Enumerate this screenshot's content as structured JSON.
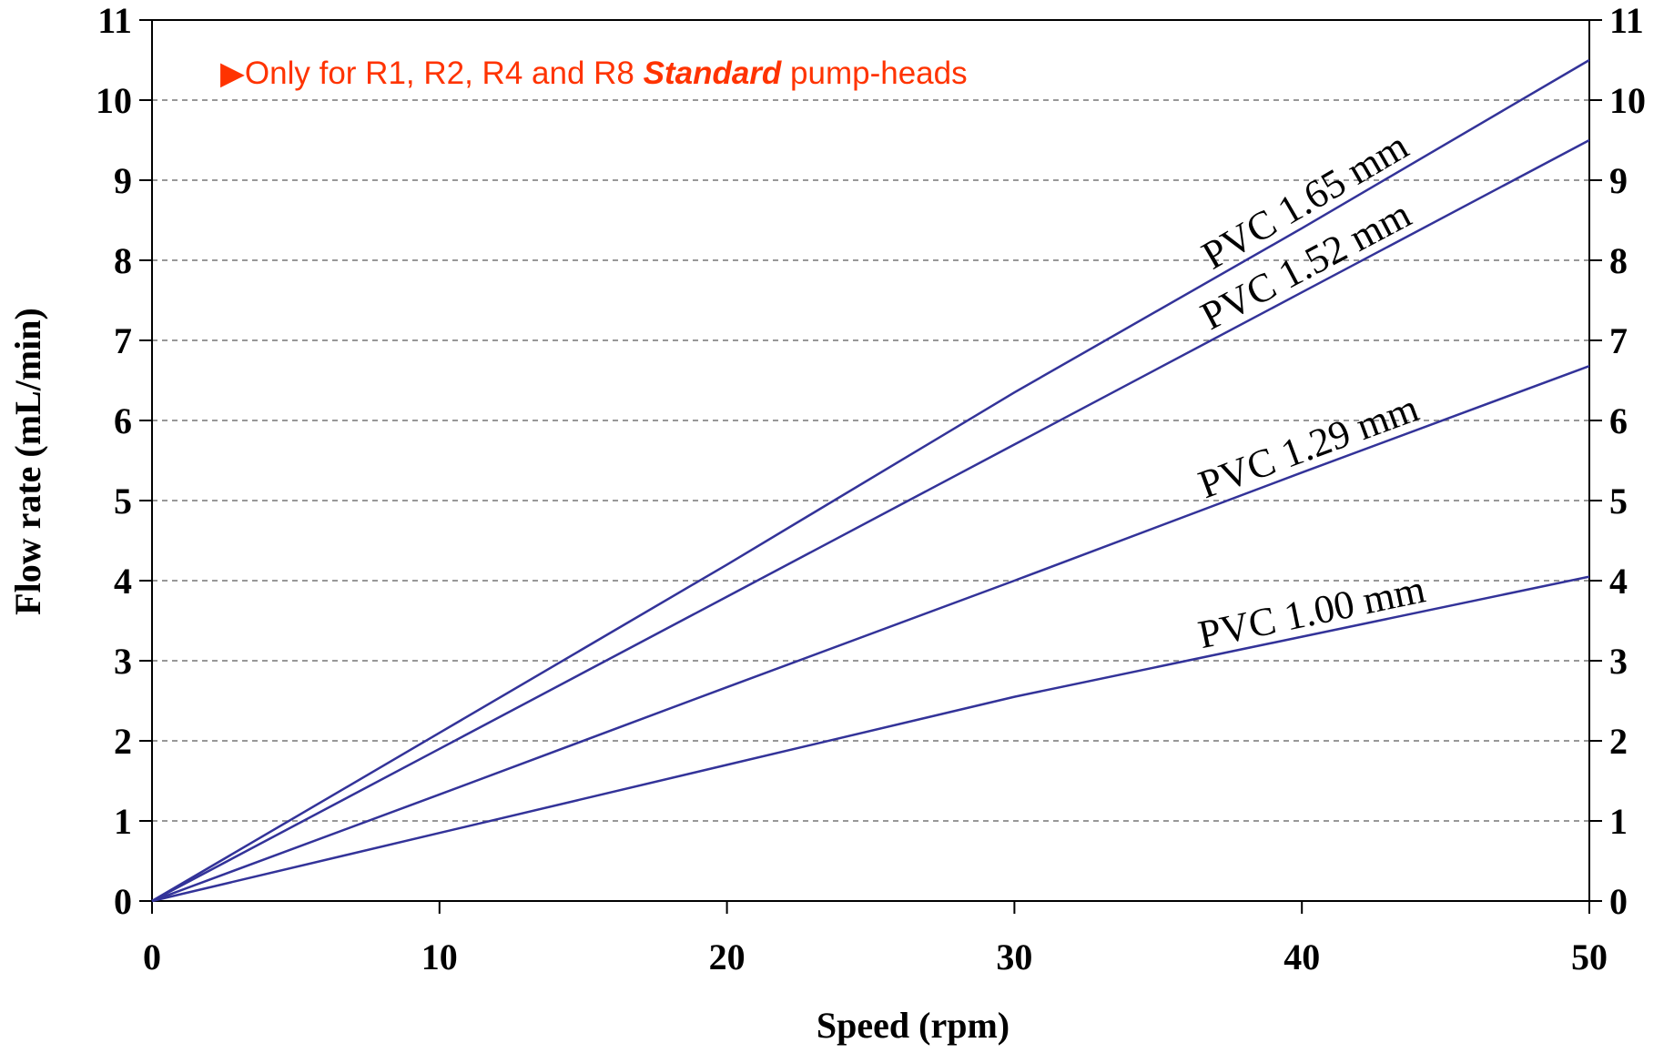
{
  "chart_data": {
    "type": "line",
    "xlabel": "Speed (rpm)",
    "ylabel": "Flow rate (mL/min)",
    "annotation": [
      "▶Only for R1, R2, R4 and R8 ",
      "Standard",
      " pump-heads"
    ],
    "annotation_color": "#ff3300",
    "x": [
      0,
      10,
      20,
      30,
      40,
      50
    ],
    "series": [
      {
        "name": "PVC 1.65 mm",
        "color": "#333399",
        "values": [
          0,
          2.1,
          4.2,
          6.35,
          8.4,
          10.5
        ]
      },
      {
        "name": "PVC 1.52 mm",
        "color": "#333399",
        "values": [
          0,
          1.9,
          3.8,
          5.7,
          7.6,
          9.5
        ]
      },
      {
        "name": "PVC 1.29 mm",
        "color": "#333399",
        "values": [
          0,
          1.33,
          2.67,
          4.0,
          5.35,
          6.68
        ]
      },
      {
        "name": "PVC 1.00 mm",
        "color": "#333399",
        "values": [
          0,
          0.85,
          1.7,
          2.55,
          3.3,
          4.05
        ]
      }
    ],
    "xlim": [
      0,
      50
    ],
    "xticks": [
      0,
      10,
      20,
      30,
      40,
      50
    ],
    "ylim": [
      0,
      11
    ],
    "yticks": [
      0,
      1,
      2,
      3,
      4,
      5,
      6,
      7,
      8,
      9,
      10,
      11
    ],
    "grid": true,
    "right_axis": true
  }
}
